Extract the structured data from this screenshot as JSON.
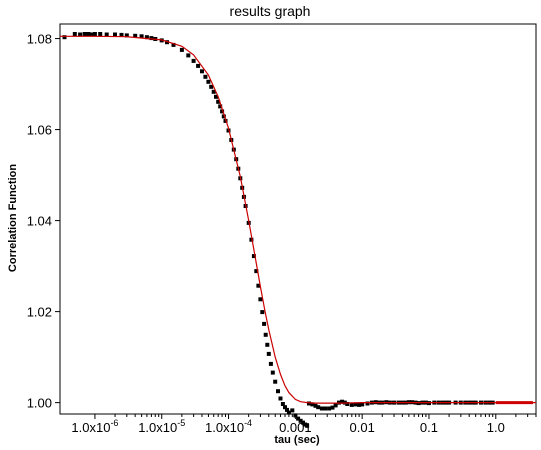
{
  "chart_data": {
    "type": "scatter",
    "title": "results graph",
    "xlabel": "tau (sec)",
    "ylabel": "Correlation Function",
    "x_scale": "log",
    "xlim": [
      3e-07,
      4.0
    ],
    "ylim": [
      0.9975,
      1.0832
    ],
    "y_ticks": [
      {
        "value": 1.0,
        "label": "1.00"
      },
      {
        "value": 1.02,
        "label": "1.02"
      },
      {
        "value": 1.04,
        "label": "1.04"
      },
      {
        "value": 1.06,
        "label": "1.06"
      },
      {
        "value": 1.08,
        "label": "1.08"
      }
    ],
    "x_ticks": [
      {
        "value": 1e-06,
        "base": "1.0x10",
        "exp": "-6"
      },
      {
        "value": 1e-05,
        "base": "1.0x10",
        "exp": "-5"
      },
      {
        "value": 0.0001,
        "base": "1.0x10",
        "exp": "-4"
      },
      {
        "value": 0.001,
        "label": "0.001"
      },
      {
        "value": 0.01,
        "label": "0.01"
      },
      {
        "value": 0.1,
        "label": "0.1"
      },
      {
        "value": 1.0,
        "label": "1.0"
      }
    ],
    "grid": false,
    "colors": {
      "data": "#000000",
      "fit": "#cc0000"
    },
    "series": [
      {
        "kind": "points",
        "x": [
          3.5e-07,
          5e-07,
          6e-07,
          7e-07,
          8e-07,
          9e-07,
          1e-06,
          1.2e-06,
          1.5e-06,
          2e-06,
          2.5e-06,
          3e-06,
          4e-06,
          5e-06,
          6e-06,
          7e-06,
          8e-06,
          1e-05,
          1.2e-05,
          1.5e-05,
          2e-05,
          2.5e-05,
          3e-05,
          3.5e-05,
          4e-05,
          4.5e-05,
          5e-05,
          5.5e-05,
          6e-05,
          6.5e-05,
          7e-05,
          7.5e-05,
          8e-05,
          8.5e-05,
          9e-05,
          0.0001,
          0.00011,
          0.00012,
          0.00013,
          0.00014,
          0.00015,
          0.00016,
          0.00017,
          0.00018,
          0.0002,
          0.00022,
          0.00024,
          0.00026,
          0.00028,
          0.0003,
          0.00032,
          0.00034,
          0.00036,
          0.00038,
          0.0004,
          0.00043,
          0.00046,
          0.0005,
          0.00055,
          0.0006,
          0.00065,
          0.0007,
          0.00075,
          0.0008,
          0.0009,
          0.001,
          0.0011,
          0.0012,
          0.0013,
          0.0014,
          0.0015,
          0.0016,
          0.0018,
          0.002,
          0.0022,
          0.0025,
          0.0028,
          0.0032,
          0.0036,
          0.004,
          0.0045,
          0.005,
          0.0055,
          0.006,
          0.007,
          0.008,
          0.009,
          0.01,
          0.012,
          0.014,
          0.016,
          0.018,
          0.02,
          0.023,
          0.026,
          0.03,
          0.035,
          0.04,
          0.045,
          0.05,
          0.056,
          0.063,
          0.07,
          0.08,
          0.09,
          0.1,
          0.12,
          0.14,
          0.16,
          0.18,
          0.2,
          0.25,
          0.3,
          0.35,
          0.4,
          0.45,
          0.5,
          0.6,
          0.7,
          0.8,
          0.9
        ],
        "y": [
          1.0803,
          1.081,
          1.0809,
          1.081,
          1.081,
          1.0809,
          1.081,
          1.081,
          1.0809,
          1.0809,
          1.0808,
          1.0807,
          1.0806,
          1.0805,
          1.0803,
          1.0801,
          1.0799,
          1.0796,
          1.0792,
          1.0786,
          1.0775,
          1.0763,
          1.0751,
          1.074,
          1.0728,
          1.0716,
          1.0705,
          1.0694,
          1.0683,
          1.0672,
          1.0661,
          1.0651,
          1.064,
          1.0629,
          1.0619,
          1.0598,
          1.0577,
          1.0556,
          1.0535,
          1.0514,
          1.0493,
          1.0472,
          1.0452,
          1.0432,
          1.0395,
          1.0358,
          1.0322,
          1.0289,
          1.0257,
          1.0227,
          1.0199,
          1.0173,
          1.0149,
          1.0127,
          1.0107,
          1.0085,
          1.0066,
          1.0046,
          1.0025,
          1.0009,
          0.9997,
          0.999,
          0.9984,
          0.9978,
          0.9983,
          0.9972,
          0.9965,
          0.996,
          0.9956,
          0.9952,
          0.9949,
          0.9998,
          0.9996,
          0.9993,
          0.999,
          0.9987,
          0.9987,
          0.9987,
          0.9989,
          0.9994,
          1.0,
          1.0002,
          1.0,
          0.9997,
          0.9995,
          0.9996,
          0.9995,
          0.9996,
          0.9998,
          1.0,
          1.0001,
          1.0,
          1.0,
          1.0001,
          1.0,
          1.0,
          1.0,
          1.0,
          1.0,
          1.0001,
          1.0001,
          1.0,
          0.9999,
          1.0,
          1.0,
          0.9999,
          1.0,
          1.0,
          1.0,
          1.0,
          1.0,
          1.0,
          1.0,
          1.0,
          1.0,
          1.0,
          1.0,
          1.0,
          1.0,
          1.0,
          1.0
        ]
      },
      {
        "kind": "fit-line",
        "x": [
          3e-07,
          1e-06,
          3e-06,
          1e-05,
          2e-05,
          3e-05,
          5e-05,
          7e-05,
          0.0001,
          0.00015,
          0.0002,
          0.00025,
          0.0003,
          0.00035,
          0.0004,
          0.0005,
          0.0006,
          0.0007,
          0.0008,
          0.001,
          0.0012,
          0.0015,
          0.002,
          0.003,
          0.005,
          0.01,
          0.03,
          0.1,
          0.3,
          1.0,
          2.0,
          4.0
        ],
        "y": [
          1.0805,
          1.0805,
          1.0804,
          1.0797,
          1.0783,
          1.0764,
          1.072,
          1.0672,
          1.0603,
          1.0497,
          1.04,
          1.0321,
          1.0255,
          1.0202,
          1.016,
          1.01,
          1.0062,
          1.0037,
          1.0022,
          1.0007,
          1.0002,
          1.0,
          0.9999,
          0.9999,
          0.9999,
          1.0,
          1.0,
          1.0,
          1.0,
          1.0,
          1.0,
          1.0
        ]
      },
      {
        "kind": "fit-line-thick",
        "x": [
          1.0,
          1.5,
          2.0,
          3.0,
          3.6
        ],
        "y": [
          1.0,
          1.0,
          1.0,
          1.0,
          1.0
        ]
      }
    ]
  }
}
